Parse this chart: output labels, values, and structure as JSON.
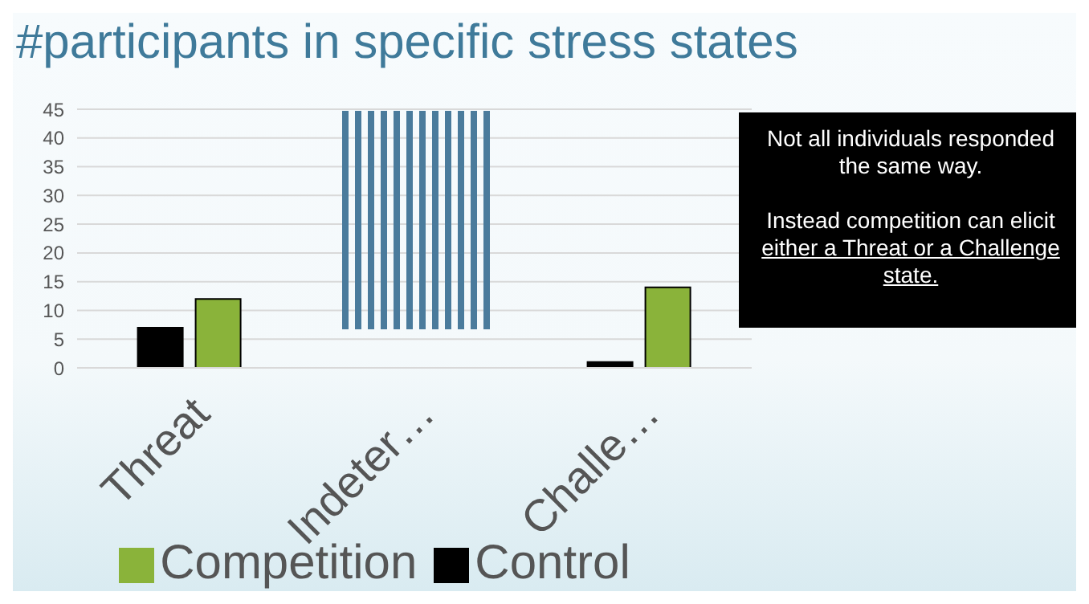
{
  "chart_data": {
    "type": "bar",
    "title": "#participants in specific stress states",
    "categories": [
      "Threat",
      "Indeter…",
      "Challe…"
    ],
    "series": [
      {
        "name": "Control",
        "color": "#000000",
        "values": [
          7,
          null,
          1
        ]
      },
      {
        "name": "Competition",
        "color": "#8ab33a",
        "values": [
          12,
          null,
          14
        ]
      }
    ],
    "ylim": [
      0,
      45
    ],
    "yticks": [
      0,
      5,
      10,
      15,
      20,
      25,
      30,
      35,
      40,
      45
    ],
    "grid": "y",
    "legend": "bottom",
    "annotations": [
      "Not all individuals responded the same way.",
      "Instead competition can elicit",
      "either a Threat or a Challenge state."
    ]
  }
}
